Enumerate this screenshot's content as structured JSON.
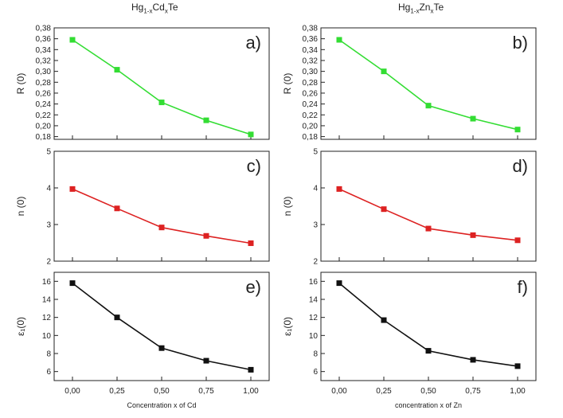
{
  "columns": [
    {
      "title_main": "Hg",
      "title_sub1": "1-x",
      "title_mid": "Cd",
      "title_sub2": "x",
      "title_end": "Te",
      "xlabel": "Concentration x of Cd"
    },
    {
      "title_main": "Hg",
      "title_sub1": "1-x",
      "title_mid": "Zn",
      "title_sub2": "x",
      "title_end": "Te",
      "xlabel": "concentration x of Zn"
    }
  ],
  "chart_data": [
    {
      "type": "line",
      "panel_label": "a)",
      "ylabel": "R (0)",
      "color": "#33dd33",
      "x": [
        0,
        0.25,
        0.5,
        0.75,
        1.0
      ],
      "values": [
        0.358,
        0.303,
        0.243,
        0.21,
        0.184
      ],
      "ylim": [
        0.175,
        0.38
      ],
      "yticks": [
        "0,18",
        "0,20",
        "0,22",
        "0,24",
        "0,26",
        "0,28",
        "0,30",
        "0,32",
        "0,34",
        "0,36",
        "0,38"
      ],
      "xticks": [
        "0,00",
        "0,25",
        "0,50",
        "0,75",
        "1,00"
      ]
    },
    {
      "type": "line",
      "panel_label": "b)",
      "ylabel": "R (0)",
      "color": "#33dd33",
      "x": [
        0,
        0.25,
        0.5,
        0.75,
        1.0
      ],
      "values": [
        0.358,
        0.3,
        0.237,
        0.213,
        0.193
      ],
      "ylim": [
        0.175,
        0.38
      ],
      "yticks": [
        "0,18",
        "0,20",
        "0,22",
        "0,24",
        "0,26",
        "0,28",
        "0,30",
        "0,32",
        "0,34",
        "0,36",
        "0,38"
      ],
      "xticks": [
        "0,00",
        "0,25",
        "0,50",
        "0,75",
        "1,00"
      ]
    },
    {
      "type": "line",
      "panel_label": "c)",
      "ylabel": "n (0)",
      "color": "#dd2222",
      "x": [
        0,
        0.25,
        0.5,
        0.75,
        1.0
      ],
      "values": [
        3.97,
        3.44,
        2.92,
        2.69,
        2.49
      ],
      "ylim": [
        2,
        5
      ],
      "yticks": [
        "2",
        "3",
        "4",
        "5"
      ],
      "xticks": [
        "0,00",
        "0,25",
        "0,50",
        "0,75",
        "1,00"
      ]
    },
    {
      "type": "line",
      "panel_label": "d)",
      "ylabel": "n (0)",
      "color": "#dd2222",
      "x": [
        0,
        0.25,
        0.5,
        0.75,
        1.0
      ],
      "values": [
        3.97,
        3.42,
        2.89,
        2.71,
        2.57
      ],
      "ylim": [
        2,
        5
      ],
      "yticks": [
        "2",
        "3",
        "4",
        "5"
      ],
      "xticks": [
        "0,00",
        "0,25",
        "0,50",
        "0,75",
        "1,00"
      ]
    },
    {
      "type": "line",
      "panel_label": "e)",
      "ylabel": "ε₁(0)",
      "color": "#111111",
      "x": [
        0,
        0.25,
        0.5,
        0.75,
        1.0
      ],
      "values": [
        15.8,
        12.0,
        8.6,
        7.2,
        6.2
      ],
      "ylim": [
        5,
        17
      ],
      "yticks": [
        "6",
        "8",
        "10",
        "12",
        "14",
        "16"
      ],
      "xticks": [
        "0,00",
        "0,25",
        "0,50",
        "0,75",
        "1,00"
      ]
    },
    {
      "type": "line",
      "panel_label": "f)",
      "ylabel": "ε₁(0)",
      "color": "#111111",
      "x": [
        0,
        0.25,
        0.5,
        0.75,
        1.0
      ],
      "values": [
        15.8,
        11.7,
        8.3,
        7.3,
        6.6
      ],
      "ylim": [
        5,
        17
      ],
      "yticks": [
        "6",
        "8",
        "10",
        "12",
        "14",
        "16"
      ],
      "xticks": [
        "0,00",
        "0,25",
        "0,50",
        "0,75",
        "1,00"
      ]
    }
  ]
}
